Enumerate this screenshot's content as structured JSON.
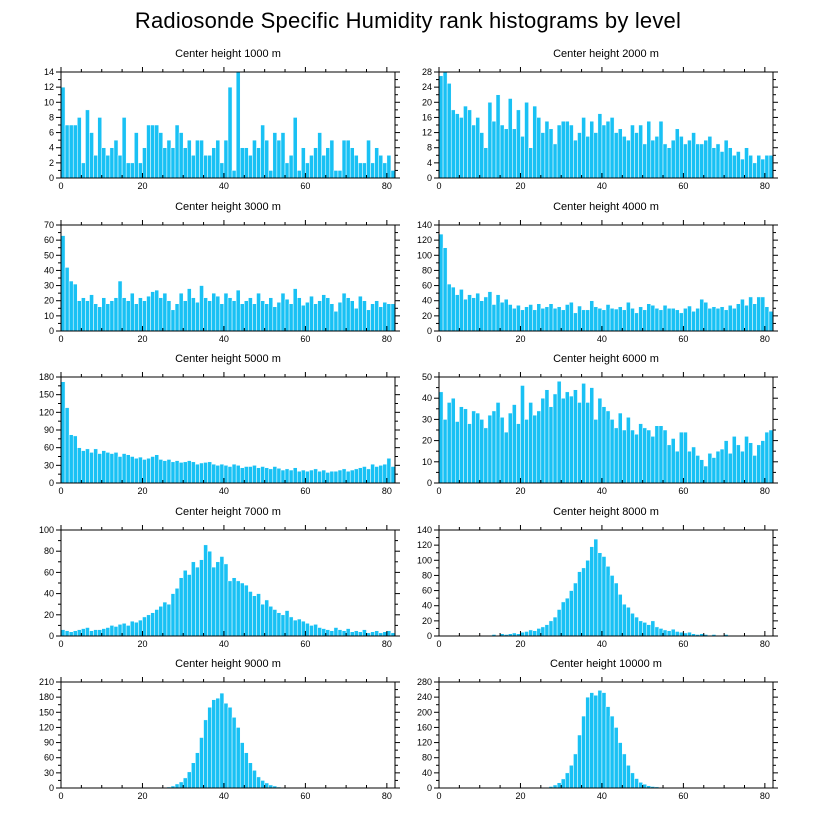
{
  "title": "Radiosonde Specific Humidity rank histograms by level",
  "colors": {
    "bar": "#19c1f4",
    "bar_edge": "#ffffff",
    "axis": "#000000"
  },
  "chart_data": [
    {
      "type": "bar",
      "title": "Center height 1000 m",
      "xlim": [
        0,
        82
      ],
      "ylim": [
        0,
        14
      ],
      "xticks": [
        0,
        20,
        40,
        60,
        80
      ],
      "yticks": [
        0,
        2,
        4,
        6,
        8,
        10,
        12,
        14
      ],
      "values": [
        12,
        7,
        7,
        7,
        8,
        2,
        9,
        6,
        3,
        8,
        4,
        3,
        4,
        5,
        3,
        8,
        2,
        2,
        6,
        2,
        4,
        7,
        7,
        7,
        6,
        4,
        5,
        4,
        7,
        6,
        4,
        5,
        3,
        5,
        5,
        3,
        3,
        4,
        5,
        2,
        5,
        12,
        1,
        14,
        4,
        4,
        3,
        5,
        4,
        7,
        5,
        1,
        6,
        5,
        6,
        2,
        3,
        8,
        1,
        4,
        2,
        3,
        4,
        6,
        3,
        4,
        5,
        1,
        1,
        5,
        5,
        4,
        3,
        2,
        2,
        5,
        2,
        4,
        3,
        2,
        3,
        1
      ]
    },
    {
      "type": "bar",
      "title": "Center height 2000 m",
      "xlim": [
        0,
        82
      ],
      "ylim": [
        0,
        28
      ],
      "xticks": [
        0,
        20,
        40,
        60,
        80
      ],
      "yticks": [
        0,
        4,
        8,
        12,
        16,
        20,
        24,
        28
      ],
      "values": [
        27,
        28,
        25,
        18,
        17,
        16,
        19,
        18,
        14,
        16,
        12,
        8,
        20,
        15,
        22,
        14,
        13,
        21,
        13,
        18,
        11,
        20,
        8,
        19,
        16,
        12,
        15,
        13,
        9,
        14,
        15,
        15,
        14,
        10,
        12,
        16,
        11,
        15,
        12,
        17,
        14,
        15,
        16,
        12,
        13,
        11,
        10,
        14,
        12,
        14,
        9,
        15,
        10,
        11,
        15,
        9,
        8,
        10,
        13,
        11,
        9,
        10,
        12,
        9,
        9,
        10,
        11,
        8,
        9,
        7,
        10,
        8,
        6,
        7,
        5,
        8,
        6,
        4,
        6,
        5,
        6,
        6
      ]
    },
    {
      "type": "bar",
      "title": "Center height 3000 m",
      "xlim": [
        0,
        82
      ],
      "ylim": [
        0,
        70
      ],
      "xticks": [
        0,
        20,
        40,
        60,
        80
      ],
      "yticks": [
        0,
        10,
        20,
        30,
        40,
        50,
        60,
        70
      ],
      "values": [
        63,
        42,
        33,
        31,
        20,
        22,
        20,
        24,
        18,
        16,
        22,
        18,
        20,
        22,
        33,
        22,
        20,
        25,
        18,
        22,
        20,
        23,
        26,
        27,
        22,
        25,
        20,
        14,
        18,
        25,
        20,
        28,
        22,
        19,
        30,
        22,
        20,
        25,
        23,
        18,
        25,
        22,
        20,
        27,
        18,
        20,
        22,
        18,
        25,
        20,
        18,
        22,
        16,
        19,
        25,
        21,
        18,
        28,
        22,
        17,
        19,
        23,
        18,
        20,
        24,
        22,
        18,
        13,
        19,
        25,
        22,
        20,
        15,
        23,
        20,
        14,
        18,
        20,
        16,
        19,
        18,
        18
      ]
    },
    {
      "type": "bar",
      "title": "Center height 4000 m",
      "xlim": [
        0,
        82
      ],
      "ylim": [
        0,
        140
      ],
      "xticks": [
        0,
        20,
        40,
        60,
        80
      ],
      "yticks": [
        0,
        20,
        40,
        60,
        80,
        100,
        120,
        140
      ],
      "values": [
        128,
        110,
        62,
        58,
        48,
        55,
        42,
        48,
        44,
        50,
        40,
        45,
        52,
        35,
        48,
        38,
        42,
        35,
        30,
        34,
        28,
        32,
        35,
        28,
        36,
        30,
        32,
        36,
        30,
        32,
        28,
        35,
        38,
        24,
        33,
        28,
        28,
        40,
        32,
        30,
        28,
        35,
        30,
        29,
        32,
        28,
        38,
        30,
        24,
        32,
        28,
        36,
        34,
        30,
        28,
        34,
        30,
        30,
        28,
        24,
        30,
        33,
        26,
        30,
        42,
        38,
        30,
        32,
        30,
        32,
        28,
        34,
        30,
        36,
        42,
        34,
        45,
        36,
        45,
        45,
        32,
        26
      ]
    },
    {
      "type": "bar",
      "title": "Center height 5000 m",
      "xlim": [
        0,
        82
      ],
      "ylim": [
        0,
        180
      ],
      "xticks": [
        0,
        20,
        40,
        60,
        80
      ],
      "yticks": [
        0,
        30,
        60,
        90,
        120,
        150,
        180
      ],
      "values": [
        172,
        128,
        82,
        80,
        60,
        55,
        58,
        52,
        58,
        50,
        55,
        52,
        50,
        52,
        45,
        50,
        48,
        45,
        42,
        44,
        40,
        42,
        45,
        48,
        40,
        38,
        40,
        36,
        38,
        35,
        36,
        38,
        36,
        32,
        34,
        35,
        36,
        32,
        30,
        32,
        30,
        28,
        32,
        30,
        26,
        28,
        28,
        30,
        26,
        28,
        26,
        24,
        28,
        25,
        22,
        24,
        22,
        26,
        20,
        22,
        20,
        22,
        24,
        20,
        22,
        18,
        20,
        20,
        22,
        24,
        20,
        22,
        24,
        26,
        28,
        24,
        32,
        28,
        30,
        32,
        42,
        28
      ]
    },
    {
      "type": "bar",
      "title": "Center height 6000 m",
      "xlim": [
        0,
        82
      ],
      "ylim": [
        0,
        50
      ],
      "xticks": [
        0,
        20,
        40,
        60,
        80
      ],
      "yticks": [
        0,
        10,
        20,
        30,
        40,
        50
      ],
      "values": [
        43,
        30,
        38,
        40,
        29,
        36,
        35,
        28,
        34,
        33,
        30,
        26,
        32,
        34,
        38,
        31,
        24,
        33,
        37,
        28,
        46,
        30,
        38,
        32,
        34,
        40,
        44,
        36,
        42,
        48,
        40,
        43,
        41,
        44,
        38,
        47,
        38,
        45,
        30,
        40,
        36,
        34,
        30,
        26,
        33,
        25,
        31,
        25,
        23,
        28,
        26,
        25,
        22,
        27,
        27,
        25,
        18,
        21,
        15,
        24,
        24,
        15,
        17,
        13,
        11,
        8,
        14,
        12,
        15,
        16,
        20,
        14,
        22,
        18,
        15,
        22,
        19,
        13,
        18,
        20,
        24,
        25
      ]
    },
    {
      "type": "bar",
      "title": "Center height 7000 m",
      "xlim": [
        0,
        82
      ],
      "ylim": [
        0,
        100
      ],
      "xticks": [
        0,
        20,
        40,
        60,
        80
      ],
      "yticks": [
        0,
        20,
        40,
        60,
        80,
        100
      ],
      "values": [
        6,
        5,
        4,
        5,
        6,
        7,
        8,
        5,
        6,
        6,
        7,
        8,
        10,
        9,
        11,
        12,
        10,
        14,
        13,
        15,
        18,
        20,
        22,
        25,
        28,
        32,
        30,
        40,
        45,
        55,
        62,
        58,
        70,
        65,
        72,
        86,
        80,
        65,
        70,
        75,
        68,
        52,
        55,
        52,
        50,
        48,
        42,
        38,
        40,
        30,
        34,
        28,
        25,
        22,
        20,
        24,
        18,
        15,
        16,
        14,
        12,
        10,
        11,
        8,
        7,
        6,
        5,
        8,
        6,
        5,
        7,
        4,
        5,
        4,
        6,
        3,
        4,
        5,
        3,
        4,
        5,
        3
      ]
    },
    {
      "type": "bar",
      "title": "Center height 8000 m",
      "xlim": [
        0,
        82
      ],
      "ylim": [
        0,
        140
      ],
      "xticks": [
        0,
        20,
        40,
        60,
        80
      ],
      "yticks": [
        0,
        20,
        40,
        60,
        80,
        100,
        120,
        140
      ],
      "values": [
        0,
        0,
        0,
        0,
        0,
        0,
        1,
        0,
        0,
        1,
        0,
        1,
        1,
        2,
        1,
        3,
        2,
        3,
        4,
        3,
        5,
        6,
        8,
        7,
        10,
        12,
        15,
        20,
        25,
        35,
        45,
        50,
        60,
        70,
        85,
        90,
        100,
        118,
        128,
        110,
        105,
        92,
        80,
        70,
        55,
        42,
        38,
        30,
        25,
        20,
        18,
        15,
        20,
        12,
        10,
        8,
        7,
        9,
        6,
        5,
        4,
        5,
        3,
        2,
        3,
        2,
        1,
        2,
        1,
        1,
        2,
        1,
        1,
        0,
        1,
        0,
        1,
        0,
        0,
        1,
        0,
        0
      ]
    },
    {
      "type": "bar",
      "title": "Center height 9000 m",
      "xlim": [
        0,
        82
      ],
      "ylim": [
        0,
        210
      ],
      "xticks": [
        0,
        20,
        40,
        60,
        80
      ],
      "yticks": [
        0,
        30,
        60,
        90,
        120,
        150,
        180,
        210
      ],
      "values": [
        0,
        0,
        0,
        0,
        0,
        0,
        0,
        0,
        0,
        0,
        0,
        0,
        0,
        0,
        0,
        0,
        0,
        0,
        0,
        0,
        0,
        0,
        0,
        0,
        0,
        1,
        2,
        4,
        8,
        12,
        20,
        32,
        50,
        70,
        100,
        135,
        160,
        175,
        178,
        188,
        168,
        160,
        140,
        120,
        90,
        70,
        50,
        35,
        22,
        15,
        10,
        6,
        4,
        2,
        1,
        1,
        0,
        0,
        0,
        0,
        0,
        0,
        0,
        0,
        0,
        0,
        0,
        0,
        0,
        0,
        0,
        0,
        0,
        0,
        0,
        0,
        0,
        0,
        0,
        0,
        0,
        0
      ]
    },
    {
      "type": "bar",
      "title": "Center height 10000 m",
      "xlim": [
        0,
        82
      ],
      "ylim": [
        0,
        280
      ],
      "xticks": [
        0,
        20,
        40,
        60,
        80
      ],
      "yticks": [
        0,
        40,
        80,
        120,
        160,
        200,
        240,
        280
      ],
      "values": [
        0,
        0,
        0,
        0,
        0,
        0,
        0,
        0,
        0,
        0,
        0,
        0,
        0,
        0,
        0,
        0,
        0,
        0,
        0,
        0,
        0,
        0,
        0,
        0,
        0,
        1,
        2,
        4,
        8,
        14,
        24,
        40,
        60,
        90,
        140,
        190,
        240,
        252,
        245,
        258,
        252,
        215,
        190,
        160,
        120,
        90,
        60,
        40,
        25,
        15,
        10,
        6,
        4,
        3,
        2,
        1,
        1,
        0,
        0,
        0,
        0,
        0,
        1,
        0,
        0,
        0,
        0,
        0,
        0,
        0,
        0,
        0,
        0,
        0,
        0,
        0,
        0,
        0,
        0,
        0,
        0,
        0
      ]
    }
  ]
}
